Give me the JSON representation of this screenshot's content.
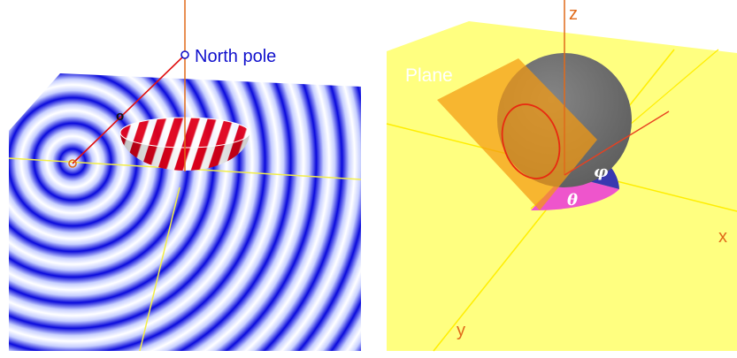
{
  "left_panel": {
    "north_pole_label": "North pole",
    "point_label": "o",
    "colors": {
      "stripe_dark": "#0000dd",
      "stripe_light": "#ffffff",
      "bowl_red": "#e0001a",
      "axis_orange": "#e06a1a",
      "label_blue": "#1010cc"
    }
  },
  "right_panel": {
    "plane_label": "Plane",
    "axis_z_label": "z",
    "axis_x_label": "x",
    "axis_y_label": "y",
    "phi_label": "φ",
    "theta_label": "θ",
    "colors": {
      "background": "#ffff80",
      "plane": "#f4a020",
      "sphere": "#6e6e6e",
      "phi_sector": "#3838b0",
      "theta_sector": "#ee55cc",
      "axis_label": "#e06a1a",
      "axis_line": "#ffee00"
    }
  }
}
